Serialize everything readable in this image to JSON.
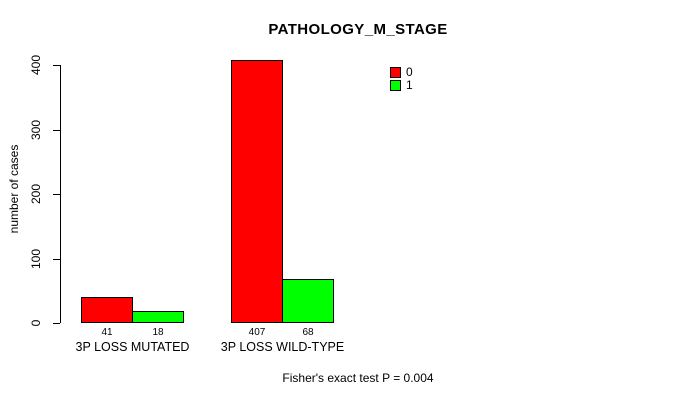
{
  "chart_data": {
    "type": "bar",
    "title": "PATHOLOGY_M_STAGE",
    "xlabel": "",
    "ylabel": "number of cases",
    "categories": [
      "3P LOSS MUTATED",
      "3P LOSS WILD-TYPE"
    ],
    "series": [
      {
        "name": "0",
        "color": "#ff0000",
        "values": [
          41,
          407
        ]
      },
      {
        "name": "1",
        "color": "#00ff00",
        "values": [
          18,
          68
        ]
      }
    ],
    "yticks": [
      0,
      100,
      200,
      300,
      400
    ],
    "ylim": [
      0,
      400
    ],
    "grid": false,
    "legend_position": "top-right",
    "bar_value_labels": [
      "41",
      "18",
      "407",
      "68"
    ],
    "footnote": "Fisher's exact test P = 0.004"
  },
  "colors": {
    "background": "#ffffff",
    "text": "#000000",
    "bar_outline": "#000000",
    "series_0": "#ff0000",
    "series_1": "#00ff00"
  }
}
